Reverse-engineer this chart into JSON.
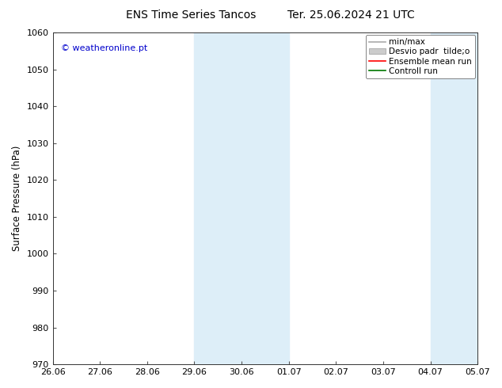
{
  "title_left": "ENS Time Series Tancos",
  "title_right": "Ter. 25.06.2024 21 UTC",
  "ylabel": "Surface Pressure (hPa)",
  "ylim": [
    970,
    1060
  ],
  "yticks": [
    970,
    980,
    990,
    1000,
    1010,
    1020,
    1030,
    1040,
    1050,
    1060
  ],
  "xtick_labels": [
    "26.06",
    "27.06",
    "28.06",
    "29.06",
    "30.06",
    "01.07",
    "02.07",
    "03.07",
    "04.07",
    "05.07"
  ],
  "xtick_positions": [
    0,
    1,
    2,
    3,
    4,
    5,
    6,
    7,
    8,
    9
  ],
  "shaded_bands": [
    {
      "x_start": 3,
      "x_end": 5
    },
    {
      "x_start": 8,
      "x_end": 9
    }
  ],
  "shade_color": "#ddeef8",
  "watermark_text": "© weatheronline.pt",
  "watermark_color": "#0000cc",
  "legend_items": [
    {
      "label": "min/max",
      "color": "#aaaaaa",
      "type": "line"
    },
    {
      "label": "Desvio padr  tilde;o",
      "color": "#cccccc",
      "type": "fill"
    },
    {
      "label": "Ensemble mean run",
      "color": "#ff0000",
      "type": "line"
    },
    {
      "label": "Controll run",
      "color": "#007700",
      "type": "line"
    }
  ],
  "bg_color": "#ffffff",
  "title_fontsize": 10,
  "tick_fontsize": 8,
  "ylabel_fontsize": 8.5,
  "legend_fontsize": 7.5
}
